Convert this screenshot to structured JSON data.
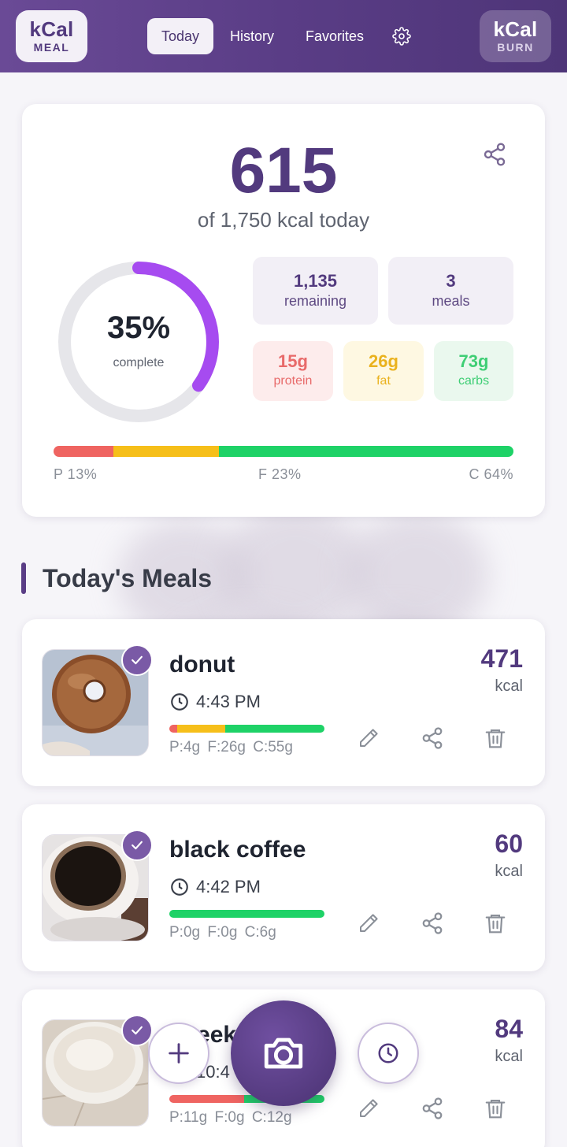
{
  "header": {
    "logo_left": {
      "big": "kCal",
      "small": "MEAL"
    },
    "logo_right": {
      "big": "kCal",
      "small": "BURN"
    },
    "nav": [
      {
        "label": "Today",
        "active": true
      },
      {
        "label": "History",
        "active": false
      },
      {
        "label": "Favorites",
        "active": false
      }
    ],
    "settings_icon": "gear-icon"
  },
  "summary": {
    "consumed": "615",
    "subtitle": "of 1,750 kcal today",
    "percent_label": "35%",
    "percent_value": 35,
    "complete_label": "complete",
    "remaining_value": "1,135",
    "remaining_label": "remaining",
    "meals_value": "3",
    "meals_label": "meals",
    "protein_value": "15g",
    "protein_label": "protein",
    "fat_value": "26g",
    "fat_label": "fat",
    "carbs_value": "73g",
    "carbs_label": "carbs",
    "split": {
      "protein": 13,
      "fat": 23,
      "carbs": 64
    },
    "split_labels": {
      "protein": "P 13%",
      "fat": "F 23%",
      "carbs": "C 64%"
    },
    "colors": {
      "protein": "#ef6461",
      "fat": "#f6bf1a",
      "carbs": "#1ed267",
      "ring": "#a64bf0",
      "track": "#e6e6ea"
    }
  },
  "section_title": "Today's Meals",
  "meals": [
    {
      "name": "donut",
      "time": "4:43 PM",
      "kcal": "471",
      "kcal_unit": "kcal",
      "macros": "P:4g F:26g C:55g",
      "split": [
        0.05,
        0.31,
        0.64
      ]
    },
    {
      "name": "black coffee",
      "time": "4:42 PM",
      "kcal": "60",
      "kcal_unit": "kcal",
      "macros": "P:0g F:0g C:6g",
      "split": [
        0,
        0,
        1
      ]
    },
    {
      "name": "Greek",
      "time": "10:4",
      "kcal": "84",
      "kcal_unit": "kcal",
      "macros": "P:11g F:0g C:12g",
      "split": [
        0.48,
        0,
        0.52
      ]
    }
  ],
  "fab": {
    "add_icon": "plus-icon",
    "camera_icon": "camera-icon",
    "history_icon": "clock-icon"
  }
}
